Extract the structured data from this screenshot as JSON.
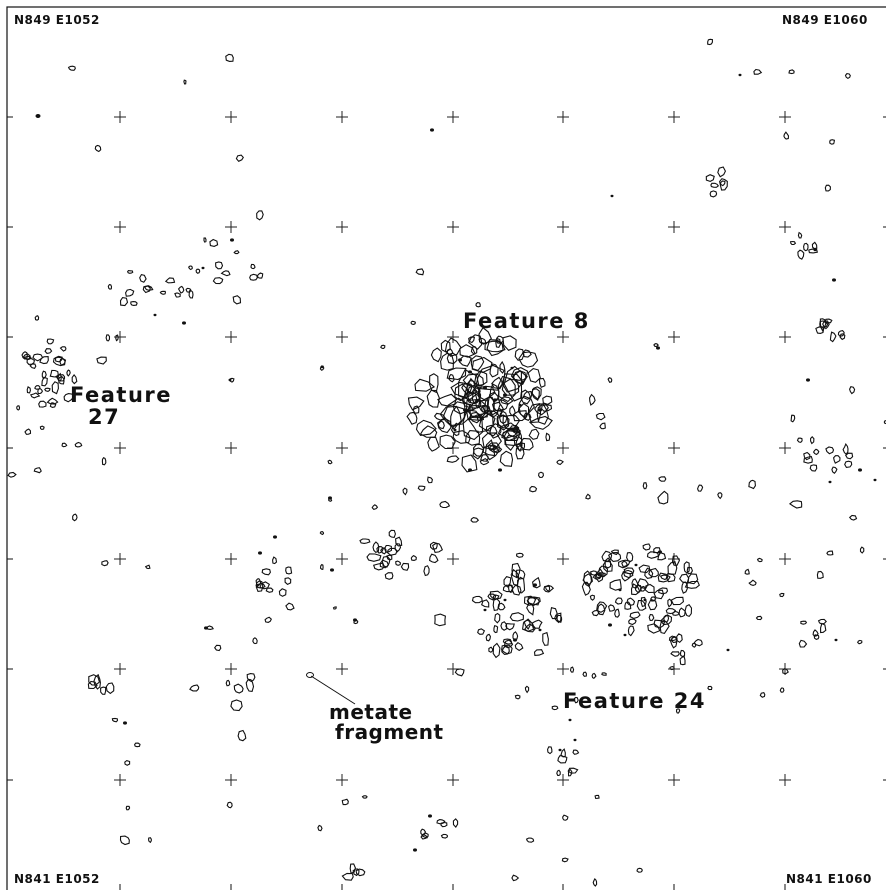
{
  "corners": {
    "top_left": "N849 E1052",
    "top_right": "N849 E1060",
    "bottom_left": "N841 E1052",
    "bottom_right": "N841 E1060"
  },
  "features": {
    "feature_8": "Feature 8",
    "feature_27_line1": "Feature",
    "feature_27_line2": "27",
    "feature_24": "Feature 24"
  },
  "annotation": {
    "line1": "metate",
    "line2": "fragment"
  }
}
